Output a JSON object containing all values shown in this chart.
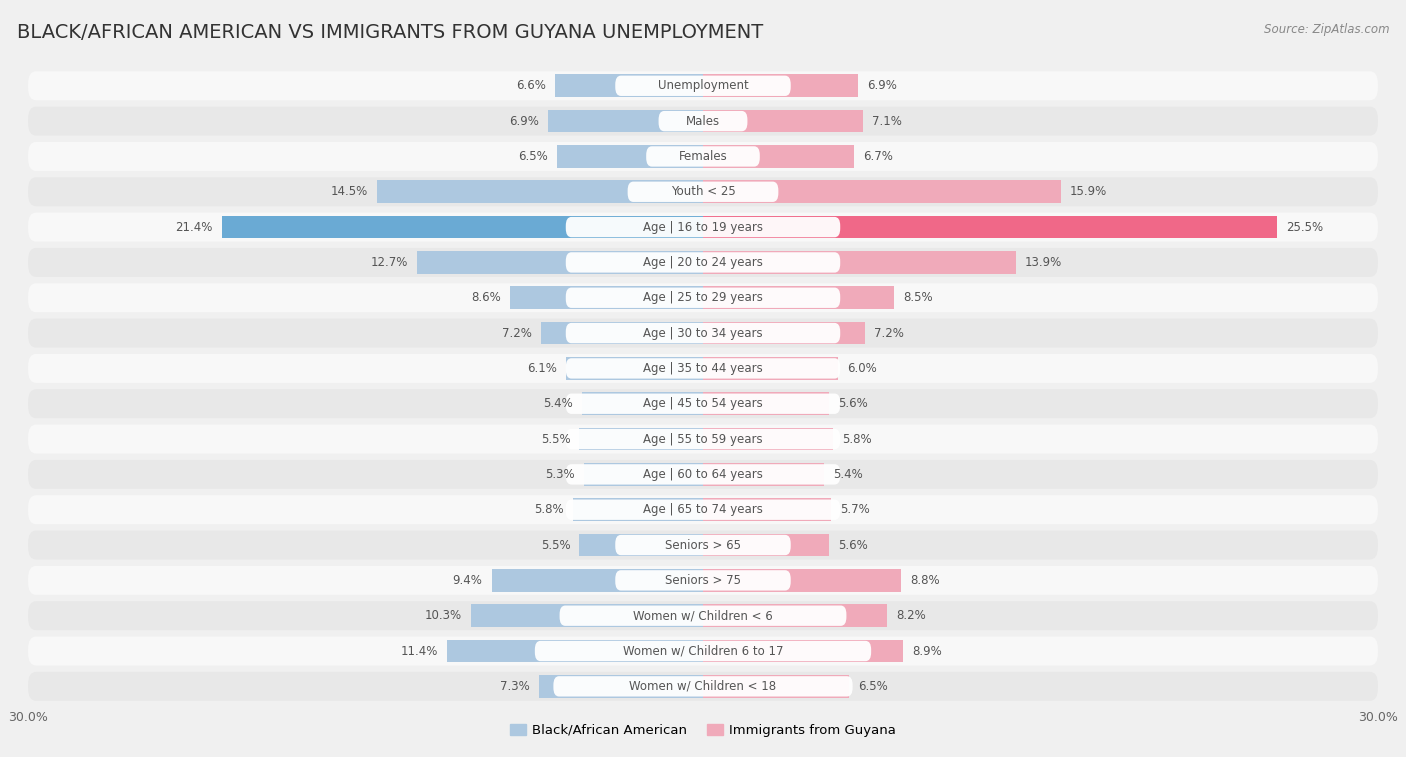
{
  "title": "BLACK/AFRICAN AMERICAN VS IMMIGRANTS FROM GUYANA UNEMPLOYMENT",
  "source": "Source: ZipAtlas.com",
  "categories": [
    "Unemployment",
    "Males",
    "Females",
    "Youth < 25",
    "Age | 16 to 19 years",
    "Age | 20 to 24 years",
    "Age | 25 to 29 years",
    "Age | 30 to 34 years",
    "Age | 35 to 44 years",
    "Age | 45 to 54 years",
    "Age | 55 to 59 years",
    "Age | 60 to 64 years",
    "Age | 65 to 74 years",
    "Seniors > 65",
    "Seniors > 75",
    "Women w/ Children < 6",
    "Women w/ Children 6 to 17",
    "Women w/ Children < 18"
  ],
  "left_values": [
    6.6,
    6.9,
    6.5,
    14.5,
    21.4,
    12.7,
    8.6,
    7.2,
    6.1,
    5.4,
    5.5,
    5.3,
    5.8,
    5.5,
    9.4,
    10.3,
    11.4,
    7.3
  ],
  "right_values": [
    6.9,
    7.1,
    6.7,
    15.9,
    25.5,
    13.9,
    8.5,
    7.2,
    6.0,
    5.6,
    5.8,
    5.4,
    5.7,
    5.6,
    8.8,
    8.2,
    8.9,
    6.5
  ],
  "left_color": "#adc8e0",
  "right_color": "#f0aaba",
  "highlight_left_color": "#6aaad4",
  "highlight_right_color": "#f06888",
  "axis_max": 30.0,
  "bg_color": "#f0f0f0",
  "row_bg_odd": "#e8e8e8",
  "row_bg_even": "#f8f8f8",
  "legend_left": "Black/African American",
  "legend_right": "Immigrants from Guyana",
  "title_fontsize": 14,
  "label_fontsize": 8.5,
  "value_fontsize": 8.5
}
